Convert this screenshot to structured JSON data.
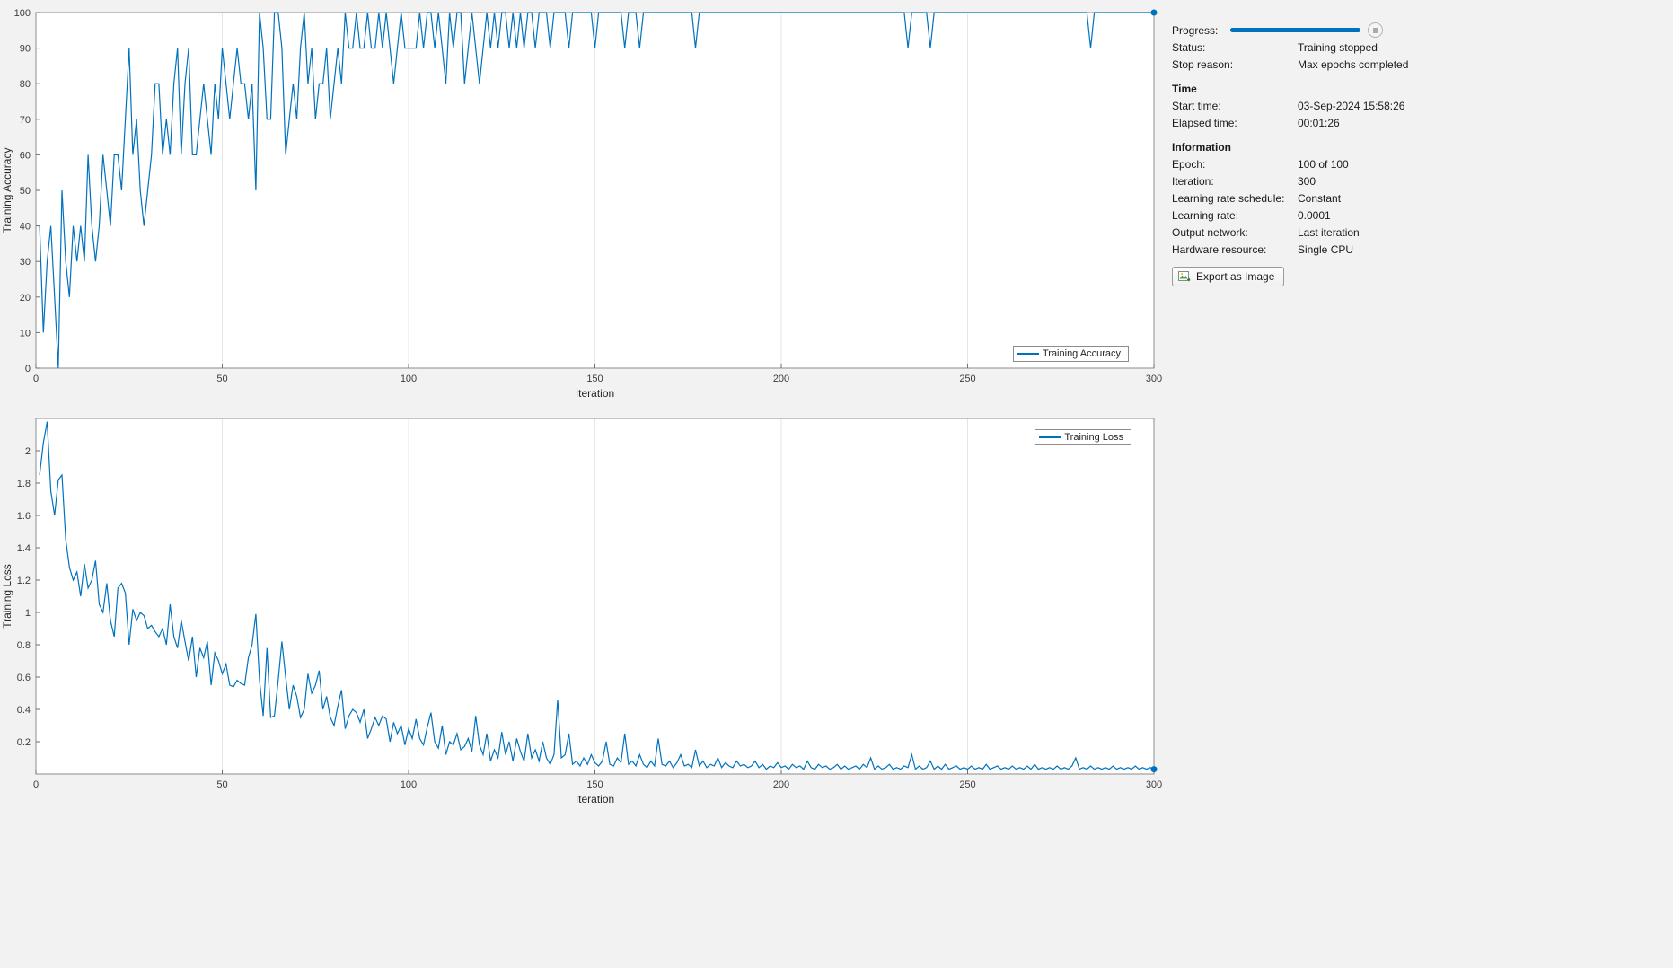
{
  "colors": {
    "accent": "#0072BD",
    "grid": "#e6e6e6",
    "axis_box": "#8c8c8c",
    "tick_text": "#3c3c3c"
  },
  "panel": {
    "progress": {
      "label": "Progress:",
      "percent": 100
    },
    "status": {
      "label": "Status:",
      "value": "Training stopped"
    },
    "stop_reason": {
      "label": "Stop reason:",
      "value": "Max epochs completed"
    },
    "time": {
      "heading": "Time",
      "rows": [
        {
          "label": "Start time:",
          "value": "03-Sep-2024 15:58:26"
        },
        {
          "label": "Elapsed time:",
          "value": "00:01:26"
        }
      ]
    },
    "information": {
      "heading": "Information",
      "rows": [
        {
          "label": "Epoch:",
          "value": "100 of 100"
        },
        {
          "label": "Iteration:",
          "value": "300"
        },
        {
          "label": "Learning rate schedule:",
          "value": "Constant"
        },
        {
          "label": "Learning rate:",
          "value": "0.0001"
        },
        {
          "label": "Output network:",
          "value": "Last iteration"
        },
        {
          "label": "Hardware resource:",
          "value": "Single CPU"
        }
      ]
    },
    "export_button_label": "Export as Image"
  },
  "chart_data": [
    {
      "type": "line",
      "title": "",
      "xlabel": "Iteration",
      "ylabel": "Training Accuracy",
      "xlim": [
        0,
        300
      ],
      "ylim": [
        0,
        100
      ],
      "xticks": [
        0,
        50,
        100,
        150,
        200,
        250,
        300
      ],
      "xtick_labels": [
        "0",
        "50",
        "100",
        "150",
        "200",
        "250",
        "300"
      ],
      "yticks": [
        0,
        10,
        20,
        30,
        40,
        50,
        60,
        70,
        80,
        90,
        100
      ],
      "ytick_labels": [
        "0",
        "10",
        "20",
        "30",
        "40",
        "50",
        "60",
        "70",
        "80",
        "90",
        "100"
      ],
      "grid": "vertical",
      "legend_position": "southeast",
      "end_marker": true,
      "series": [
        {
          "name": "Training Accuracy",
          "color": "#0072BD",
          "x_start": 1,
          "values": [
            40,
            10,
            30,
            40,
            20,
            0,
            50,
            30,
            20,
            40,
            30,
            40,
            30,
            60,
            40,
            30,
            40,
            60,
            50,
            40,
            60,
            60,
            50,
            70,
            90,
            60,
            70,
            50,
            40,
            50,
            60,
            80,
            80,
            60,
            70,
            60,
            80,
            90,
            60,
            80,
            90,
            60,
            60,
            70,
            80,
            70,
            60,
            80,
            70,
            90,
            80,
            70,
            80,
            90,
            80,
            80,
            70,
            80,
            50,
            100,
            90,
            70,
            70,
            100,
            100,
            90,
            60,
            70,
            80,
            70,
            90,
            100,
            80,
            90,
            70,
            80,
            80,
            90,
            70,
            80,
            90,
            80,
            100,
            90,
            90,
            100,
            90,
            90,
            100,
            90,
            90,
            100,
            90,
            100,
            90,
            80,
            90,
            100,
            90,
            90,
            90,
            90,
            100,
            90,
            100,
            100,
            90,
            100,
            90,
            80,
            100,
            90,
            100,
            100,
            80,
            90,
            100,
            90,
            80,
            90,
            100,
            90,
            100,
            90,
            100,
            100,
            90,
            100,
            90,
            100,
            90,
            100,
            100,
            90,
            100,
            100,
            100,
            90,
            100,
            100,
            100,
            100,
            90,
            100,
            100,
            100,
            100,
            100,
            100,
            90,
            100,
            100,
            100,
            100,
            100,
            100,
            100,
            90,
            100,
            100,
            100,
            90,
            100,
            100,
            100,
            100,
            100,
            100,
            100,
            100,
            100,
            100,
            100,
            100,
            100,
            100,
            90,
            100,
            100,
            100,
            100,
            100,
            100,
            100,
            100,
            100,
            100,
            100,
            100,
            100,
            100,
            100,
            100,
            100,
            100,
            100,
            100,
            100,
            100,
            100,
            100,
            100,
            100,
            100,
            100,
            100,
            100,
            100,
            100,
            100,
            100,
            100,
            100,
            100,
            100,
            100,
            100,
            100,
            100,
            100,
            100,
            100,
            100,
            100,
            100,
            100,
            100,
            100,
            100,
            100,
            100,
            100,
            100,
            90,
            100,
            100,
            100,
            100,
            100,
            90,
            100,
            100,
            100,
            100,
            100,
            100,
            100,
            100,
            100,
            100,
            100,
            100,
            100,
            100,
            100,
            100,
            100,
            100,
            100,
            100,
            100,
            100,
            100,
            100,
            100,
            100,
            100,
            100,
            100,
            100,
            100,
            100,
            100,
            100,
            100,
            100,
            100,
            100,
            100,
            100,
            100,
            100,
            90,
            100,
            100,
            100,
            100,
            100,
            100,
            100,
            100,
            100,
            100,
            100,
            100,
            100,
            100,
            100,
            100,
            100
          ]
        }
      ]
    },
    {
      "type": "line",
      "title": "",
      "xlabel": "Iteration",
      "ylabel": "Training Loss",
      "xlim": [
        0,
        300
      ],
      "ylim": [
        0,
        2.2
      ],
      "xticks": [
        0,
        50,
        100,
        150,
        200,
        250,
        300
      ],
      "xtick_labels": [
        "0",
        "50",
        "100",
        "150",
        "200",
        "250",
        "300"
      ],
      "yticks": [
        0.2,
        0.4,
        0.6,
        0.8,
        1.0,
        1.2,
        1.4,
        1.6,
        1.8,
        2.0
      ],
      "ytick_labels": [
        "0.2",
        "0.4",
        "0.6",
        "0.8",
        "1",
        "1.2",
        "1.4",
        "1.6",
        "1.8",
        "2"
      ],
      "grid": "vertical",
      "legend_position": "northeast",
      "end_marker": true,
      "series": [
        {
          "name": "Training Loss",
          "color": "#0072BD",
          "x_start": 1,
          "values": [
            1.85,
            2.05,
            2.18,
            1.75,
            1.6,
            1.82,
            1.85,
            1.45,
            1.28,
            1.2,
            1.25,
            1.1,
            1.3,
            1.15,
            1.2,
            1.32,
            1.05,
            1.0,
            1.18,
            0.95,
            0.85,
            1.15,
            1.18,
            1.12,
            0.8,
            1.02,
            0.95,
            1.0,
            0.98,
            0.9,
            0.92,
            0.88,
            0.85,
            0.9,
            0.8,
            1.05,
            0.85,
            0.78,
            0.95,
            0.82,
            0.7,
            0.85,
            0.6,
            0.78,
            0.72,
            0.82,
            0.55,
            0.75,
            0.7,
            0.62,
            0.68,
            0.55,
            0.54,
            0.58,
            0.56,
            0.55,
            0.72,
            0.8,
            0.99,
            0.58,
            0.36,
            0.78,
            0.35,
            0.36,
            0.58,
            0.82,
            0.6,
            0.4,
            0.55,
            0.48,
            0.35,
            0.4,
            0.62,
            0.5,
            0.55,
            0.64,
            0.4,
            0.48,
            0.35,
            0.3,
            0.42,
            0.52,
            0.28,
            0.36,
            0.4,
            0.38,
            0.32,
            0.4,
            0.22,
            0.28,
            0.35,
            0.3,
            0.36,
            0.34,
            0.2,
            0.32,
            0.25,
            0.3,
            0.18,
            0.28,
            0.22,
            0.34,
            0.22,
            0.18,
            0.29,
            0.38,
            0.2,
            0.16,
            0.3,
            0.12,
            0.2,
            0.18,
            0.25,
            0.15,
            0.17,
            0.22,
            0.14,
            0.36,
            0.18,
            0.12,
            0.25,
            0.08,
            0.15,
            0.1,
            0.26,
            0.12,
            0.2,
            0.08,
            0.22,
            0.14,
            0.08,
            0.25,
            0.1,
            0.15,
            0.08,
            0.2,
            0.1,
            0.06,
            0.12,
            0.46,
            0.1,
            0.12,
            0.25,
            0.06,
            0.08,
            0.05,
            0.1,
            0.06,
            0.12,
            0.07,
            0.05,
            0.08,
            0.2,
            0.06,
            0.05,
            0.1,
            0.07,
            0.25,
            0.06,
            0.08,
            0.05,
            0.12,
            0.06,
            0.04,
            0.08,
            0.05,
            0.22,
            0.06,
            0.05,
            0.08,
            0.04,
            0.07,
            0.12,
            0.05,
            0.06,
            0.04,
            0.15,
            0.05,
            0.08,
            0.04,
            0.06,
            0.05,
            0.1,
            0.04,
            0.07,
            0.05,
            0.04,
            0.08,
            0.05,
            0.06,
            0.04,
            0.05,
            0.08,
            0.04,
            0.06,
            0.03,
            0.05,
            0.04,
            0.07,
            0.04,
            0.05,
            0.03,
            0.06,
            0.04,
            0.05,
            0.03,
            0.08,
            0.04,
            0.03,
            0.06,
            0.04,
            0.05,
            0.03,
            0.04,
            0.06,
            0.03,
            0.05,
            0.03,
            0.04,
            0.05,
            0.03,
            0.06,
            0.04,
            0.1,
            0.03,
            0.05,
            0.03,
            0.04,
            0.06,
            0.03,
            0.04,
            0.03,
            0.05,
            0.04,
            0.12,
            0.03,
            0.05,
            0.03,
            0.04,
            0.08,
            0.03,
            0.05,
            0.03,
            0.06,
            0.03,
            0.04,
            0.05,
            0.03,
            0.04,
            0.03,
            0.05,
            0.03,
            0.04,
            0.03,
            0.06,
            0.03,
            0.04,
            0.05,
            0.03,
            0.04,
            0.03,
            0.05,
            0.03,
            0.04,
            0.03,
            0.05,
            0.03,
            0.06,
            0.03,
            0.04,
            0.03,
            0.04,
            0.03,
            0.05,
            0.03,
            0.04,
            0.03,
            0.05,
            0.1,
            0.03,
            0.04,
            0.03,
            0.05,
            0.03,
            0.04,
            0.03,
            0.04,
            0.03,
            0.05,
            0.03,
            0.04,
            0.03,
            0.04,
            0.03,
            0.05,
            0.03,
            0.04,
            0.03,
            0.04,
            0.03
          ]
        }
      ]
    }
  ]
}
